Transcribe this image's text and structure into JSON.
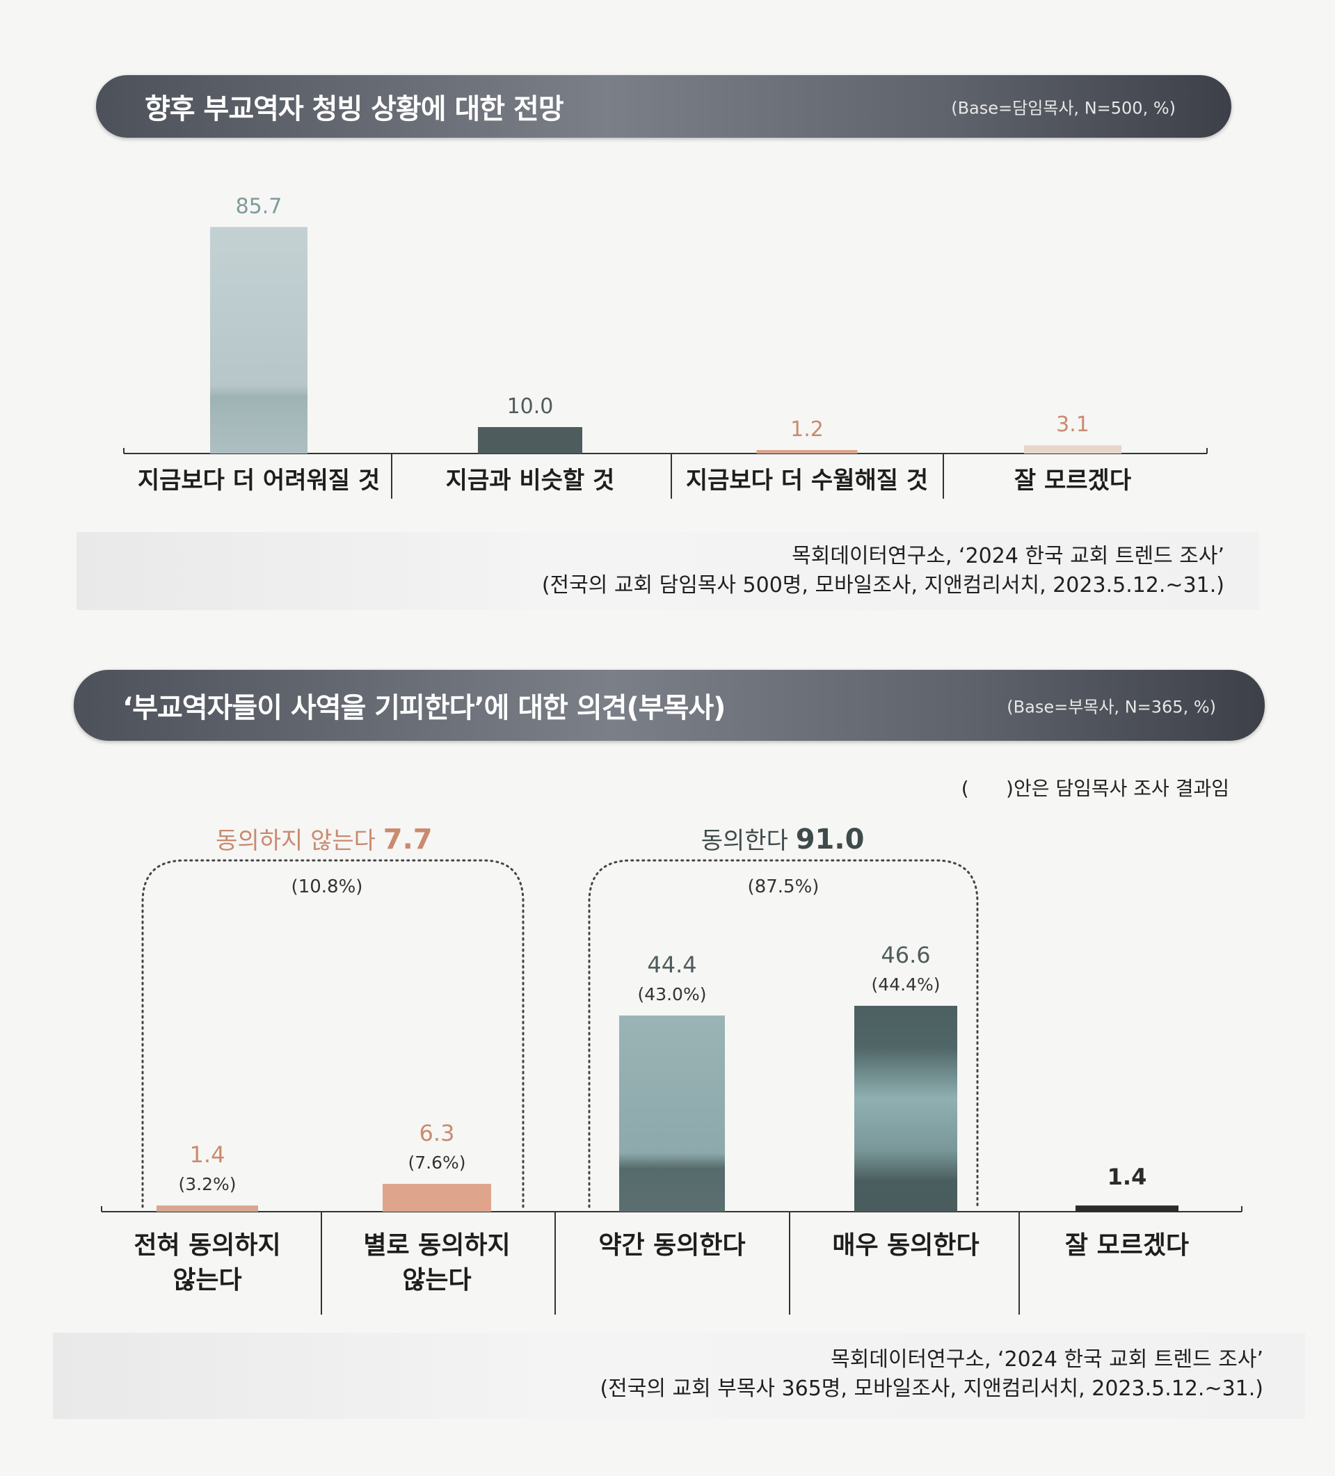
{
  "chart1": {
    "title": "향후 부교역자 청빙 상황에 대한 전망",
    "base": "(Base=담임목사, N=500, %)",
    "source_line1": "목회데이터연구소, ‘2024 한국 교회 트렌드 조사’",
    "source_line2": "(전국의 교회 담임목사 500명, 모바일조사, 지앤컴리서치, 2023.5.12.~31.)"
  },
  "chart2": {
    "title": "‘부교역자들이 사역을 기피한다’에 대한 의견(부목사)",
    "base": "(Base=부목사, N=365, %)",
    "note": "(      )안은 담임목사 조사 결과임",
    "disagree_group": {
      "label": "동의하지 않는다 ",
      "value": "7.7",
      "senior": "(10.8%)"
    },
    "agree_group": {
      "label": "동의한다 ",
      "value": "91.0",
      "senior": "(87.5%)"
    },
    "source_line1": "목회데이터연구소, ‘2024 한국 교회 트렌드 조사’",
    "source_line2": "(전국의 교회 부목사 365명, 모바일조사, 지앤컴리서치, 2023.5.12.~31.)"
  },
  "chart_data": [
    {
      "type": "bar",
      "title": "향후 부교역자 청빙 상황에 대한 전망",
      "subtitle": "(Base=담임목사, N=500, %)",
      "categories": [
        "지금보다 더 어려워질 것",
        "지금과 비슷할 것",
        "지금보다 더 수월해질 것",
        "잘 모르겠다"
      ],
      "values": [
        85.7,
        10.0,
        1.2,
        3.1
      ],
      "value_labels": [
        "85.7",
        "10.0",
        "1.2",
        "3.1"
      ],
      "colors": [
        "#b9cacd",
        "#4f5c5d",
        "#d9a58e",
        "#e7d6ca"
      ],
      "label_colors": [
        "#7f9a9c",
        "#4f5c5d",
        "#c98a6f",
        "#c98a6f"
      ],
      "ylim": [
        0,
        100
      ],
      "grid": false,
      "legend": "none"
    },
    {
      "type": "bar",
      "title": "‘부교역자들이 사역을 기피한다’에 대한 의견(부목사)",
      "subtitle": "(Base=부목사, N=365, %)",
      "categories": [
        [
          "전혀 동의하지",
          "않는다"
        ],
        [
          "별로 동의하지",
          "않는다"
        ],
        [
          "약간 동의한다"
        ],
        [
          "매우 동의한다"
        ],
        [
          "잘 모르겠다"
        ]
      ],
      "values": [
        1.4,
        6.3,
        44.4,
        46.6,
        1.4
      ],
      "value_labels": [
        "1.4",
        "6.3",
        "44.4",
        "46.6",
        "1.4"
      ],
      "senior_pastor_values": [
        "(3.2%)",
        "(7.6%)",
        "(43.0%)",
        "(44.4%)",
        ""
      ],
      "colors": [
        "#d9a58e",
        "#dfa48c",
        "#93aeb0",
        "#4f6364",
        "#2b2b2b"
      ],
      "label_colors": [
        "#c98a6f",
        "#c98a6f",
        "#4f5c5d",
        "#4f5c5d",
        "#2b2b2b"
      ],
      "ylim": [
        0,
        55
      ],
      "grid": false,
      "legend": "none"
    }
  ]
}
